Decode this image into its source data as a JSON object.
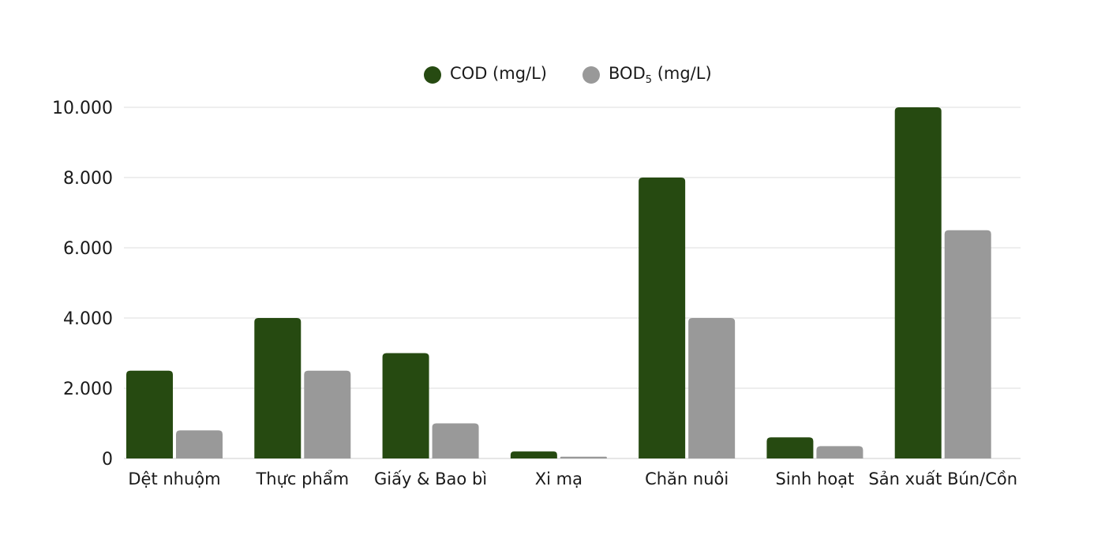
{
  "chart_data": {
    "type": "bar",
    "categories": [
      "Dệt nhuộm",
      "Thực phẩm",
      "Giấy & Bao bì",
      "Xi mạ",
      "Chăn nuôi",
      "Sinh hoạt",
      "Sản xuất Bún/Cồn"
    ],
    "series": [
      {
        "name": "COD (mg/L)",
        "color": "#264a11",
        "values": [
          2500,
          4000,
          3000,
          200,
          8000,
          600,
          10000
        ]
      },
      {
        "name": "BOD5 (mg/L)",
        "name_base": "BOD",
        "name_sub": "5",
        "name_suffix": " (mg/L)",
        "color": "#999999",
        "values": [
          800,
          2500,
          1000,
          50,
          4000,
          350,
          6500
        ]
      }
    ],
    "yticks": [
      0,
      2000,
      4000,
      6000,
      8000,
      10000
    ],
    "ytick_labels": [
      "0",
      "2.000",
      "4.000",
      "6.000",
      "8.000",
      "10.000"
    ],
    "ylim": [
      0,
      10000
    ],
    "grid": true,
    "legend_position": "top-center"
  }
}
